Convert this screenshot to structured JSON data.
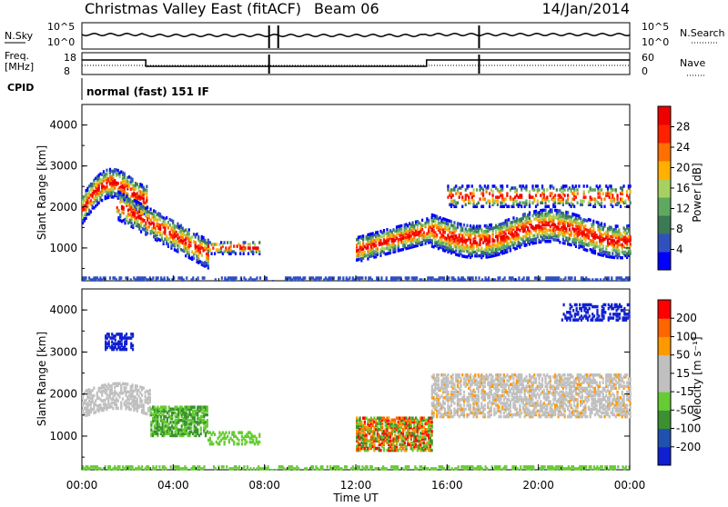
{
  "header": {
    "title": "Christmas Valley East (fitACF)",
    "beam": "Beam 06",
    "date": "14/Jan/2014"
  },
  "params": {
    "nsky_label": "N.Sky",
    "nsearch_label": "N.Search",
    "freq_label_1": "Freq.",
    "freq_label_2": "[MHz]",
    "nave_label": "Nave",
    "cpid_label": "CPID",
    "cpid_text": "normal (fast) 151 IF",
    "noise_ticks": [
      "10^5",
      "10^0"
    ],
    "noise_right_ticks": [
      "10^5",
      "10^0"
    ],
    "freq_ticks": [
      "18",
      "8"
    ],
    "nave_ticks": [
      "60",
      "0"
    ]
  },
  "colors": {
    "power_scale": [
      "#0000ff",
      "#3050c0",
      "#3b7a55",
      "#5fa860",
      "#a8d060",
      "#ffb000",
      "#ff7000",
      "#ff2000",
      "#ee0000"
    ],
    "velocity_scale": [
      "#1020d0",
      "#2050b0",
      "#3c9030",
      "#66cc33",
      "#c0c0c0",
      "#c0c0c0",
      "#ff9900",
      "#ff6600",
      "#ff0000"
    ]
  },
  "chart_data": [
    {
      "type": "heatmap",
      "name": "power",
      "xlabel": "",
      "ylabel": "Slant Range [km]",
      "ylim": [
        200,
        4500
      ],
      "yticks": [
        "4000",
        "3000",
        "2000",
        "1000"
      ],
      "colorbar_label": "Power [dB]",
      "colorbar_ticks": [
        "28",
        "24",
        "20",
        "16",
        "12",
        "8",
        "4"
      ],
      "clim": [
        0,
        32
      ]
    },
    {
      "type": "heatmap",
      "name": "velocity",
      "xlabel": "Time UT",
      "ylabel": "Slant Range [km]",
      "ylim": [
        200,
        4500
      ],
      "yticks": [
        "4000",
        "3000",
        "2000",
        "1000"
      ],
      "colorbar_label": "Velocity [m s⁻¹]",
      "colorbar_ticks": [
        "200",
        "100",
        "50",
        "15",
        "-15",
        "-50",
        "-100",
        "-200"
      ],
      "clim": [
        -250,
        250
      ]
    }
  ],
  "xaxis": {
    "ticks": [
      "00:00",
      "04:00",
      "08:00",
      "12:00",
      "16:00",
      "20:00",
      "00:00"
    ],
    "label": "Time UT"
  }
}
